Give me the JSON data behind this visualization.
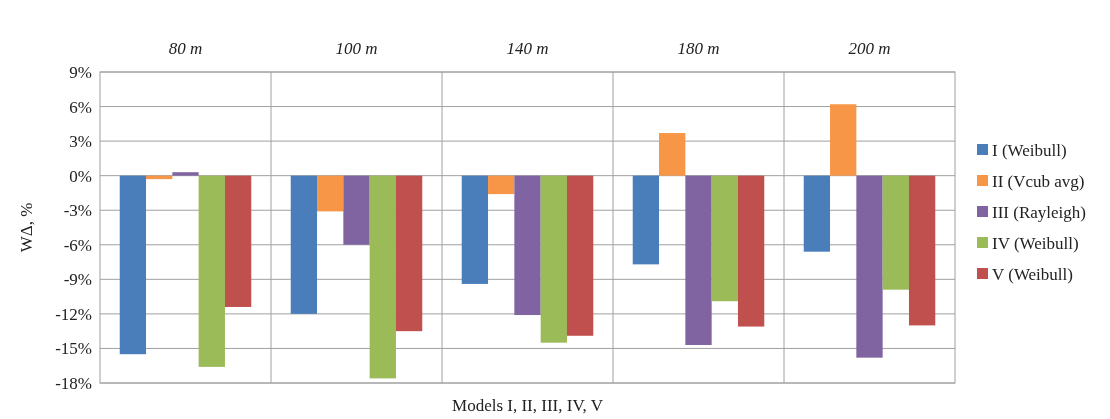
{
  "chart_data": {
    "type": "bar",
    "xlabel": "Models I, II, III, IV, V",
    "ylabel": "WΔ, %",
    "categories": [
      "80 m",
      "100 m",
      "140 m",
      "180 m",
      "200 m"
    ],
    "series": [
      {
        "name": "I (Weibull)",
        "color": "#4a7ebb",
        "values": [
          -15.5,
          -12.0,
          -9.4,
          -7.7,
          -6.6
        ]
      },
      {
        "name": "II (Vcub avg)",
        "color": "#f79646",
        "values": [
          -0.3,
          -3.1,
          -1.6,
          3.7,
          6.2
        ]
      },
      {
        "name": "III (Rayleigh)",
        "color": "#8064a2",
        "values": [
          0.3,
          -6.0,
          -12.1,
          -14.7,
          -15.8
        ]
      },
      {
        "name": "IV (Weibull)",
        "color": "#9bbb59",
        "values": [
          -16.6,
          -17.6,
          -14.5,
          -10.9,
          -9.9
        ]
      },
      {
        "name": "V (Weibull)",
        "color": "#c0504d",
        "values": [
          -11.4,
          -13.5,
          -13.9,
          -13.1,
          -13.0
        ]
      }
    ],
    "ylim": [
      -18,
      9
    ],
    "yticks": [
      {
        "value": -18,
        "label": "-18%"
      },
      {
        "value": -15,
        "label": "-15%"
      },
      {
        "value": -12,
        "label": "-12%"
      },
      {
        "value": -9,
        "label": "-9%"
      },
      {
        "value": -6,
        "label": "-6%"
      },
      {
        "value": -3,
        "label": "-3%"
      },
      {
        "value": 0,
        "label": "0%"
      },
      {
        "value": 3,
        "label": "3%"
      },
      {
        "value": 6,
        "label": "6%"
      },
      {
        "value": 9,
        "label": "9%"
      }
    ],
    "grid": true,
    "legend": "right"
  }
}
